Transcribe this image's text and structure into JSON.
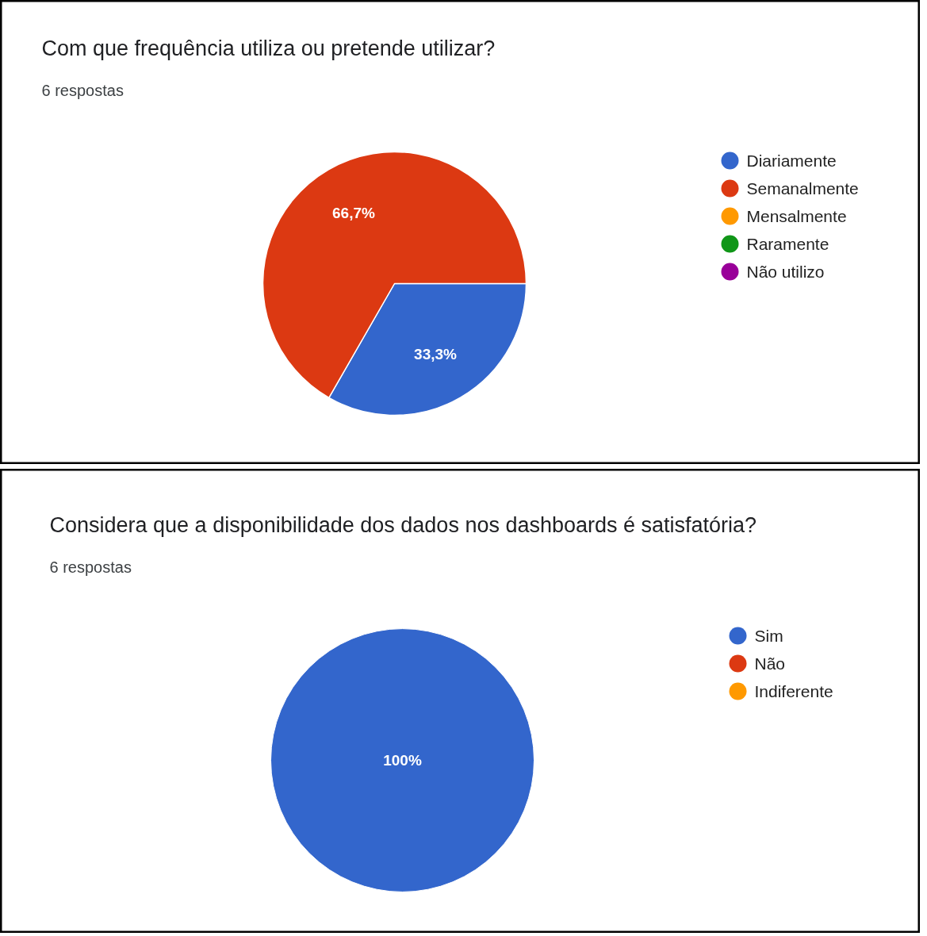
{
  "chart_data": [
    {
      "type": "pie",
      "title": "Com que frequência utiliza ou pretende utilizar?",
      "subtitle": "6 respostas",
      "categories": [
        "Diariamente",
        "Semanalmente",
        "Mensalmente",
        "Raramente",
        "Não utilizo"
      ],
      "values": [
        33.3,
        66.7,
        0,
        0,
        0
      ],
      "colors": [
        "#3366cc",
        "#dc3912",
        "#ff9900",
        "#109618",
        "#990099"
      ],
      "value_labels": [
        "33,3%",
        "66,7%",
        null,
        null,
        null
      ],
      "legend": "right"
    },
    {
      "type": "pie",
      "title": "Considera que a disponibilidade dos dados nos dashboards é satisfatória?",
      "subtitle": "6 respostas",
      "categories": [
        "Sim",
        "Não",
        "Indiferente"
      ],
      "values": [
        100,
        0,
        0
      ],
      "colors": [
        "#3366cc",
        "#dc3912",
        "#ff9900"
      ],
      "value_labels": [
        "100%",
        null,
        null
      ],
      "legend": "right"
    }
  ]
}
